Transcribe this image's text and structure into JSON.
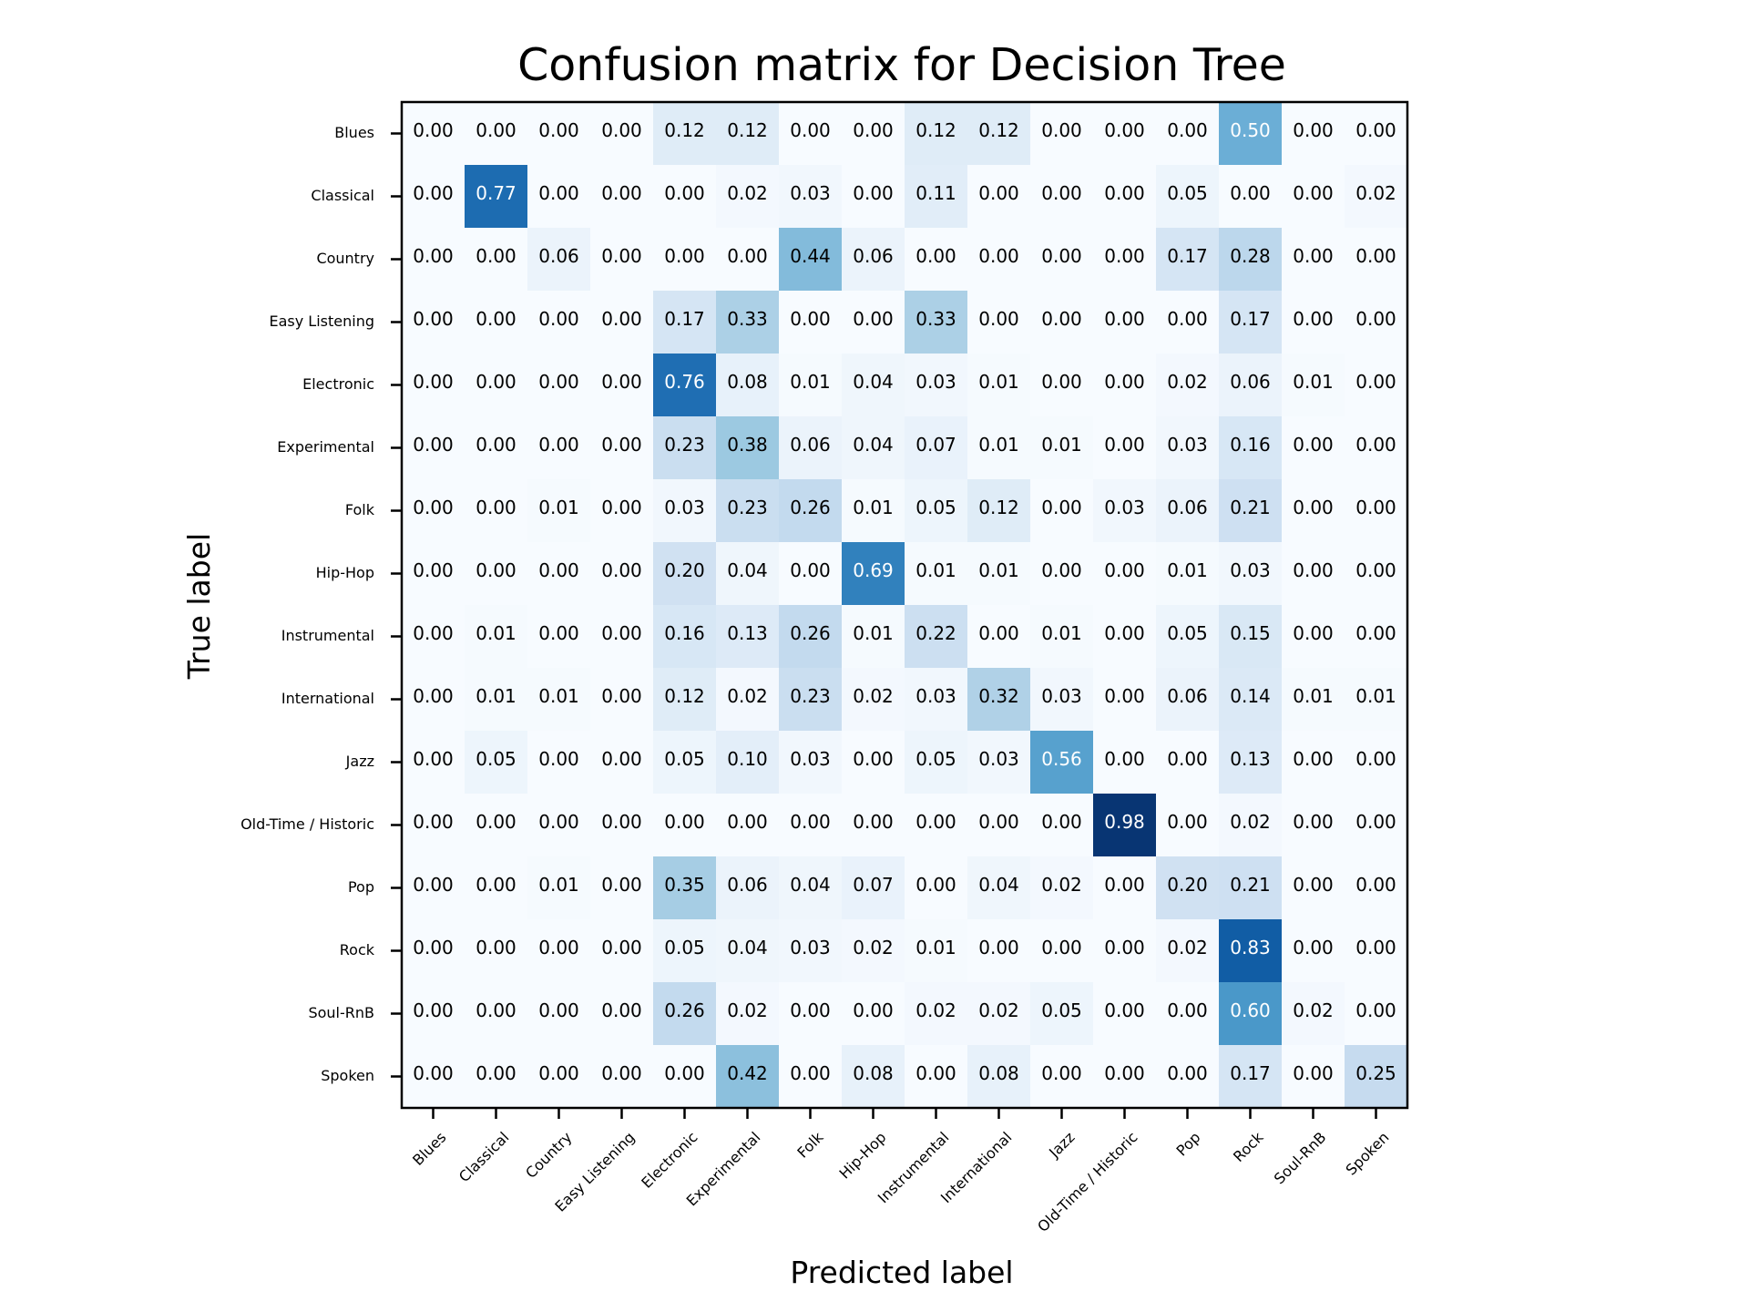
{
  "chart_data": {
    "type": "heatmap",
    "title": "Confusion matrix for Decision Tree",
    "xlabel": "Predicted label",
    "ylabel": "True label",
    "colormap": "Blues",
    "value_range": [
      0,
      1
    ],
    "grid": false,
    "colors": {
      "low": "#f7fbff",
      "high": "#08306b",
      "text_dark": "#000000",
      "text_light": "#ffffff"
    },
    "categories": [
      "Blues",
      "Classical",
      "Country",
      "Easy Listening",
      "Electronic",
      "Experimental",
      "Folk",
      "Hip-Hop",
      "Instrumental",
      "International",
      "Jazz",
      "Old-Time / Historic",
      "Pop",
      "Rock",
      "Soul-RnB",
      "Spoken"
    ],
    "matrix": [
      [
        0.0,
        0.0,
        0.0,
        0.0,
        0.12,
        0.12,
        0.0,
        0.0,
        0.12,
        0.12,
        0.0,
        0.0,
        0.0,
        0.5,
        0.0,
        0.0
      ],
      [
        0.0,
        0.77,
        0.0,
        0.0,
        0.0,
        0.02,
        0.03,
        0.0,
        0.11,
        0.0,
        0.0,
        0.0,
        0.05,
        0.0,
        0.0,
        0.02
      ],
      [
        0.0,
        0.0,
        0.06,
        0.0,
        0.0,
        0.0,
        0.44,
        0.06,
        0.0,
        0.0,
        0.0,
        0.0,
        0.17,
        0.28,
        0.0,
        0.0
      ],
      [
        0.0,
        0.0,
        0.0,
        0.0,
        0.17,
        0.33,
        0.0,
        0.0,
        0.33,
        0.0,
        0.0,
        0.0,
        0.0,
        0.17,
        0.0,
        0.0
      ],
      [
        0.0,
        0.0,
        0.0,
        0.0,
        0.76,
        0.08,
        0.01,
        0.04,
        0.03,
        0.01,
        0.0,
        0.0,
        0.02,
        0.06,
        0.01,
        0.0
      ],
      [
        0.0,
        0.0,
        0.0,
        0.0,
        0.23,
        0.38,
        0.06,
        0.04,
        0.07,
        0.01,
        0.01,
        0.0,
        0.03,
        0.16,
        0.0,
        0.0
      ],
      [
        0.0,
        0.0,
        0.01,
        0.0,
        0.03,
        0.23,
        0.26,
        0.01,
        0.05,
        0.12,
        0.0,
        0.03,
        0.06,
        0.21,
        0.0,
        0.0
      ],
      [
        0.0,
        0.0,
        0.0,
        0.0,
        0.2,
        0.04,
        0.0,
        0.69,
        0.01,
        0.01,
        0.0,
        0.0,
        0.01,
        0.03,
        0.0,
        0.0
      ],
      [
        0.0,
        0.01,
        0.0,
        0.0,
        0.16,
        0.13,
        0.26,
        0.01,
        0.22,
        0.0,
        0.01,
        0.0,
        0.05,
        0.15,
        0.0,
        0.0
      ],
      [
        0.0,
        0.01,
        0.01,
        0.0,
        0.12,
        0.02,
        0.23,
        0.02,
        0.03,
        0.32,
        0.03,
        0.0,
        0.06,
        0.14,
        0.01,
        0.01
      ],
      [
        0.0,
        0.05,
        0.0,
        0.0,
        0.05,
        0.1,
        0.03,
        0.0,
        0.05,
        0.03,
        0.56,
        0.0,
        0.0,
        0.13,
        0.0,
        0.0
      ],
      [
        0.0,
        0.0,
        0.0,
        0.0,
        0.0,
        0.0,
        0.0,
        0.0,
        0.0,
        0.0,
        0.0,
        0.98,
        0.0,
        0.02,
        0.0,
        0.0
      ],
      [
        0.0,
        0.0,
        0.01,
        0.0,
        0.35,
        0.06,
        0.04,
        0.07,
        0.0,
        0.04,
        0.02,
        0.0,
        0.2,
        0.21,
        0.0,
        0.0
      ],
      [
        0.0,
        0.0,
        0.0,
        0.0,
        0.05,
        0.04,
        0.03,
        0.02,
        0.01,
        0.0,
        0.0,
        0.0,
        0.02,
        0.83,
        0.0,
        0.0
      ],
      [
        0.0,
        0.0,
        0.0,
        0.0,
        0.26,
        0.02,
        0.0,
        0.0,
        0.02,
        0.02,
        0.05,
        0.0,
        0.0,
        0.6,
        0.02,
        0.0
      ],
      [
        0.0,
        0.0,
        0.0,
        0.0,
        0.0,
        0.42,
        0.0,
        0.08,
        0.0,
        0.08,
        0.0,
        0.0,
        0.0,
        0.17,
        0.0,
        0.25
      ]
    ]
  }
}
